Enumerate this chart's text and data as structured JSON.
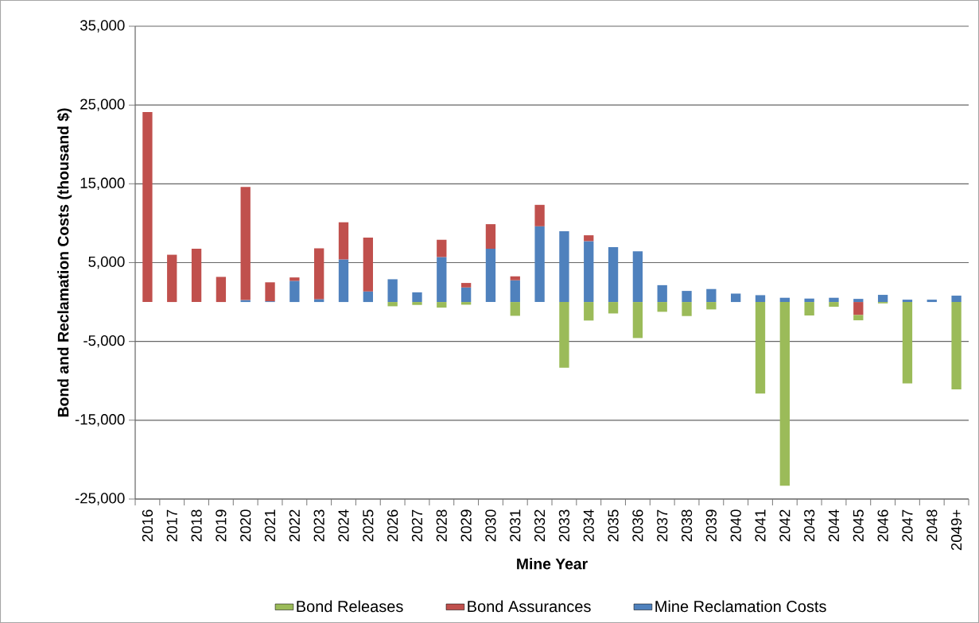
{
  "chart_data": {
    "type": "bar",
    "stacked": true,
    "xlabel": "Mine Year",
    "ylabel": "Bond and Reclamation Costs (thousand $)",
    "categories": [
      "2016",
      "2017",
      "2018",
      "2019",
      "2020",
      "2021",
      "2022",
      "2023",
      "2024",
      "2025",
      "2026",
      "2027",
      "2028",
      "2029",
      "2030",
      "2031",
      "2032",
      "2033",
      "2034",
      "2035",
      "2036",
      "2037",
      "2038",
      "2039",
      "2040",
      "2041",
      "2042",
      "2043",
      "2044",
      "2045",
      "2046",
      "2047",
      "2048",
      "2049+"
    ],
    "series": [
      {
        "name": "Mine Reclamation Costs",
        "color": "#4f81bd",
        "values": [
          null,
          null,
          null,
          null,
          250,
          100,
          2690,
          370,
          5410,
          1350,
          2890,
          1230,
          5710,
          1850,
          6760,
          2760,
          9610,
          8970,
          7730,
          6960,
          6430,
          2140,
          1410,
          1650,
          1070,
          870,
          540,
          440,
          540,
          400,
          910,
          300,
          300,
          810
        ]
      },
      {
        "name": "Bond Assurances",
        "color": "#c0504d",
        "values": [
          24100,
          6000,
          6760,
          3190,
          14350,
          2400,
          430,
          6450,
          4710,
          6820,
          null,
          null,
          2190,
          570,
          3120,
          500,
          2720,
          null,
          740,
          null,
          null,
          null,
          null,
          null,
          null,
          null,
          null,
          null,
          null,
          -1650,
          null,
          null,
          null,
          null
        ]
      },
      {
        "name": "Bond Releases",
        "color": "#9bbb59",
        "values": [
          null,
          null,
          null,
          null,
          null,
          null,
          null,
          null,
          null,
          null,
          -540,
          -370,
          -710,
          -340,
          null,
          -1750,
          null,
          -8340,
          -2350,
          -1450,
          -4570,
          -1240,
          -1780,
          -940,
          null,
          -11620,
          -23300,
          -1710,
          -600,
          -670,
          -170,
          -10320,
          null,
          -11090
        ]
      }
    ],
    "ylim": [
      -25000,
      35000
    ],
    "yticks": [
      {
        "value": -25000,
        "label": "-25,000"
      },
      {
        "value": -15000,
        "label": "-15,000"
      },
      {
        "value": -5000,
        "label": "-5,000"
      },
      {
        "value": 5000,
        "label": "5,000"
      },
      {
        "value": 15000,
        "label": "15,000"
      },
      {
        "value": 25000,
        "label": "25,000"
      },
      {
        "value": 35000,
        "label": "35,000"
      }
    ],
    "grid": "y",
    "legend": "bottom"
  }
}
